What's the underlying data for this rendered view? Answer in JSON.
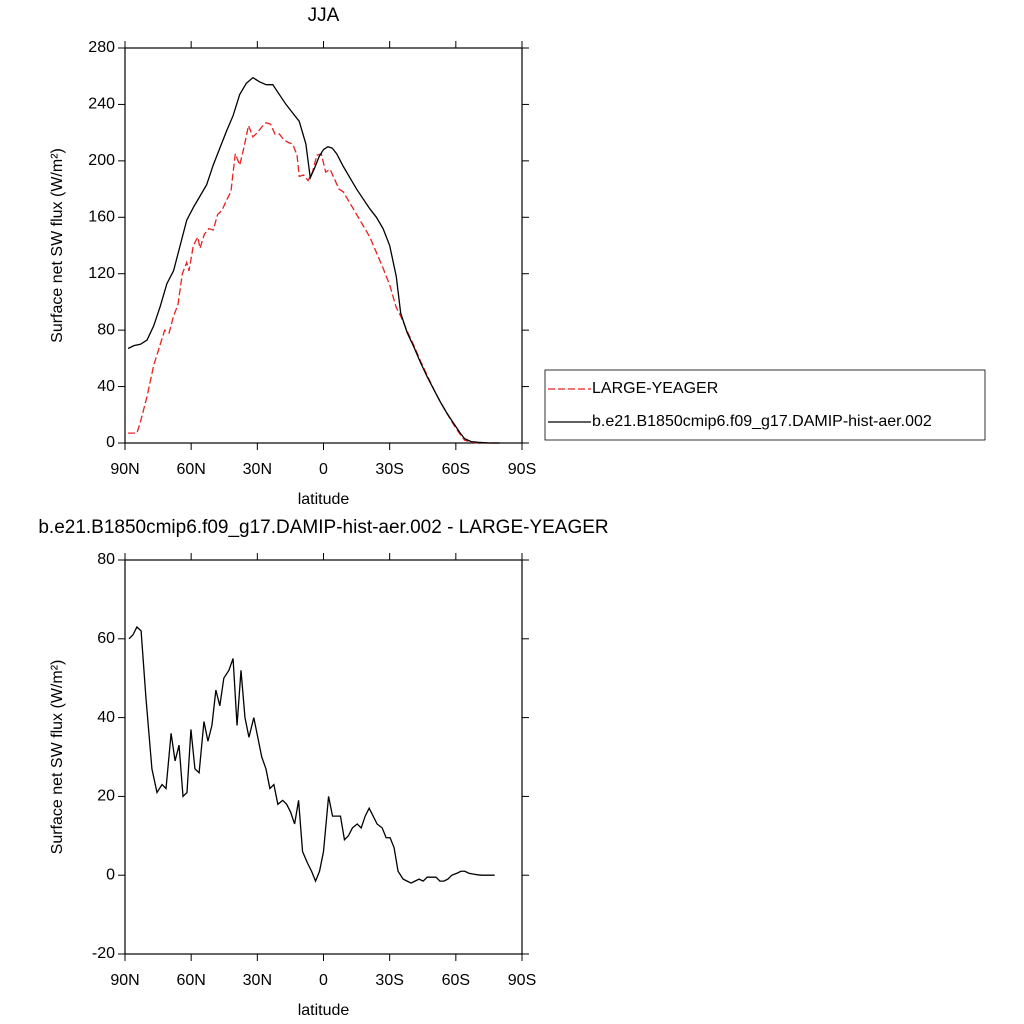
{
  "chart_data": [
    {
      "type": "line",
      "title": "JJA",
      "xlabel": "latitude",
      "ylabel": "Surface net SW flux (W/m²)",
      "xlim": [
        90,
        -90
      ],
      "xticks": [
        {
          "value": 90,
          "label": "90N"
        },
        {
          "value": 60,
          "label": "60N"
        },
        {
          "value": 30,
          "label": "30N"
        },
        0,
        {
          "value": -30,
          "label": "30S"
        },
        {
          "value": -60,
          "label": "60S"
        },
        {
          "value": -90,
          "label": "90S"
        }
      ],
      "ylim": [
        0,
        280
      ],
      "yticks": [
        0,
        40,
        80,
        120,
        160,
        200,
        240,
        280
      ],
      "legend": "right",
      "series": [
        {
          "name": "LARGE-YEAGER",
          "color": "#e8211e",
          "dashed": true,
          "x": [
            88.6,
            86,
            84.6,
            83,
            80,
            77,
            74,
            72,
            70,
            68,
            66,
            64,
            62,
            61,
            59,
            57,
            56,
            54,
            52,
            50,
            48,
            46,
            44,
            42,
            40,
            38,
            36,
            34,
            32,
            30,
            28,
            26,
            24,
            22,
            20,
            18,
            16,
            14,
            12,
            11,
            9,
            7,
            5,
            3,
            1,
            -1,
            -3,
            -5,
            -7,
            -9,
            -12,
            -15,
            -18,
            -21,
            -24,
            -27,
            -30,
            -33,
            -35,
            -38,
            -41,
            -44,
            -47,
            -50,
            -53,
            -56,
            -59,
            -62,
            -64,
            -67,
            -70,
            -75,
            -80
          ],
          "values": [
            7,
            7,
            7,
            15,
            33,
            55,
            70,
            80,
            78,
            90,
            98,
            120,
            128,
            122,
            140,
            146,
            138,
            148,
            152,
            151,
            162,
            165,
            172,
            178,
            205,
            197,
            210,
            225,
            217,
            220,
            224,
            227,
            226,
            219,
            219,
            215,
            213,
            212,
            204,
            189,
            190,
            186,
            192,
            204,
            205,
            192,
            194,
            187,
            180,
            178,
            170,
            162,
            154,
            146,
            135,
            124,
            112,
            96,
            90,
            79,
            69,
            58,
            48,
            38,
            29,
            21,
            13,
            6,
            2,
            0.5,
            0,
            0,
            0
          ]
        },
        {
          "name": "b.e21.B1850cmip6.f09_g17.DAMIP-hist-aer.002",
          "color": "#000000",
          "dashed": false,
          "x": [
            88.6,
            86,
            83,
            80,
            77,
            74,
            71,
            68,
            65,
            62,
            59,
            56,
            53,
            50,
            47,
            44,
            41,
            38,
            35,
            32,
            29,
            26,
            23,
            20,
            17,
            14,
            11,
            8,
            6,
            4,
            2,
            0,
            -2,
            -4,
            -6,
            -9,
            -12,
            -15,
            -18,
            -21,
            -24,
            -27,
            -30,
            -33,
            -35,
            -38,
            -41,
            -44,
            -47,
            -50,
            -53,
            -56,
            -59,
            -62,
            -64,
            -67,
            -70,
            -75,
            -80
          ],
          "values": [
            67,
            69,
            70,
            73,
            83,
            97,
            113,
            122,
            140,
            158,
            167,
            175,
            183,
            197,
            209,
            221,
            232,
            247,
            255,
            259,
            256,
            254,
            254,
            247,
            240,
            234,
            228,
            212,
            188,
            195,
            203,
            208,
            210,
            209,
            205,
            196,
            188,
            180,
            173,
            166,
            160,
            152,
            140,
            118,
            92,
            78,
            68,
            57,
            47,
            38,
            29,
            21,
            14,
            7,
            3,
            1,
            0.5,
            0,
            0
          ]
        }
      ]
    },
    {
      "type": "line",
      "title": "b.e21.B1850cmip6.f09_g17.DAMIP-hist-aer.002 - LARGE-YEAGER",
      "xlabel": "latitude",
      "ylabel": "Surface net SW flux (W/m²)",
      "xlim": [
        90,
        -90
      ],
      "xticks": [
        {
          "value": 90,
          "label": "90N"
        },
        {
          "value": 60,
          "label": "60N"
        },
        {
          "value": 30,
          "label": "30N"
        },
        0,
        {
          "value": -30,
          "label": "30S"
        },
        {
          "value": -60,
          "label": "60S"
        },
        {
          "value": -90,
          "label": "90S"
        }
      ],
      "ylim": [
        -20,
        80
      ],
      "yticks": [
        -20,
        0,
        20,
        40,
        60,
        80
      ],
      "series": [
        {
          "color": "#000000",
          "dashed": false,
          "x": [
            88.2,
            86.4,
            84.6,
            82.7,
            80.5,
            77.8,
            75.5,
            73.2,
            71.4,
            69.1,
            67.3,
            65.5,
            63.7,
            61.9,
            60.1,
            58.3,
            56.4,
            54.2,
            52.4,
            50.6,
            48.8,
            47.0,
            45.2,
            42.9,
            41.0,
            39.2,
            37.4,
            35.6,
            33.8,
            31.6,
            29.8,
            28.0,
            26.1,
            24.3,
            22.5,
            20.7,
            18.5,
            16.7,
            14.9,
            13.1,
            11.3,
            9.5,
            7.2,
            5.4,
            3.6,
            1.8,
            0,
            -2.3,
            -4.1,
            -5.9,
            -7.7,
            -9.5,
            -11.3,
            -13.1,
            -15.3,
            -17.1,
            -18.9,
            -20.7,
            -22.5,
            -24.3,
            -26.6,
            -28.4,
            -30.2,
            -32.0,
            -33.8,
            -36.1,
            -37.9,
            -39.7,
            -41.5,
            -43.3,
            -45.2,
            -47.0,
            -49.2,
            -51.0,
            -52.8,
            -54.6,
            -56.4,
            -58.2,
            -60.5,
            -62.3,
            -64.1,
            -65.9,
            -67.7,
            -69.9,
            -71.7,
            -77.6
          ],
          "values": [
            60,
            61,
            63,
            62,
            45,
            27,
            21,
            23,
            22,
            36,
            29,
            33,
            20,
            21,
            37,
            27,
            26,
            39,
            34,
            38,
            47,
            43,
            50,
            52,
            55,
            38,
            52,
            40,
            35,
            40,
            35,
            30,
            27,
            22,
            23,
            18,
            19,
            18,
            16,
            13,
            19,
            6,
            3,
            1,
            -1.5,
            1,
            6,
            20,
            15,
            15,
            15,
            9,
            10,
            12,
            13,
            12,
            15,
            17,
            15,
            13,
            12,
            9.5,
            9.5,
            7,
            1,
            -1,
            -1.5,
            -2,
            -1.5,
            -1,
            -1.5,
            -0.5,
            -0.5,
            -0.5,
            -1.5,
            -1.5,
            -1,
            0,
            0.5,
            1,
            1,
            0.5,
            0.3,
            0.1,
            0,
            0
          ]
        }
      ]
    }
  ]
}
